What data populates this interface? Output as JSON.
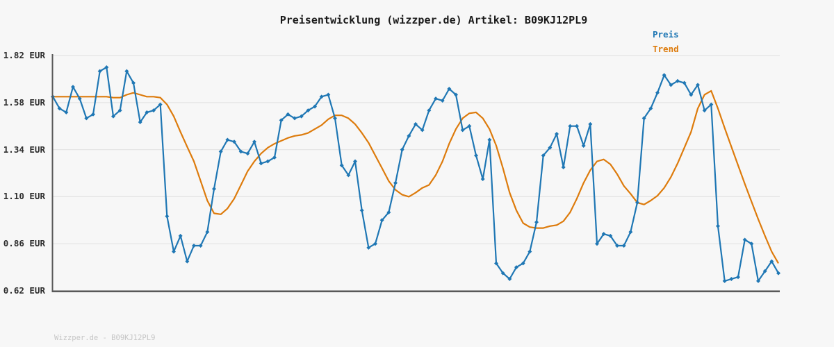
{
  "title": "Preisentwicklung (wizzper.de) Artikel: B09KJ12PL9",
  "legend": {
    "items": [
      {
        "label": "Preis",
        "color": "#1f77b4"
      },
      {
        "label": "Trend",
        "color": "#dd7b0c"
      }
    ]
  },
  "footer": {
    "watermark": "Wizzper.de - B09KJ12PL9"
  },
  "chart_data": {
    "type": "line",
    "title": "Preisentwicklung (wizzper.de) Artikel: B09KJ12PL9",
    "xlabel": "",
    "ylabel": "EUR",
    "ylim": [
      0.62,
      1.82
    ],
    "ytick_labels": [
      "1.82 EUR",
      "1.58 EUR",
      "1.34 EUR",
      "1.10 EUR",
      "0.86 EUR",
      "0.62 EUR"
    ],
    "ytick_values": [
      1.82,
      1.58,
      1.34,
      1.1,
      0.86,
      0.62
    ],
    "grid": "horizontal",
    "legend_position": "top-right",
    "series": [
      {
        "name": "Preis",
        "color": "#1f77b4",
        "marker": "diamond",
        "values": [
          1.61,
          1.55,
          1.53,
          1.66,
          1.6,
          1.5,
          1.52,
          1.74,
          1.76,
          1.51,
          1.54,
          1.74,
          1.68,
          1.48,
          1.53,
          1.54,
          1.57,
          1.0,
          0.82,
          0.9,
          0.77,
          0.85,
          0.85,
          0.92,
          1.14,
          1.33,
          1.39,
          1.38,
          1.33,
          1.32,
          1.38,
          1.27,
          1.28,
          1.3,
          1.49,
          1.52,
          1.5,
          1.51,
          1.54,
          1.56,
          1.61,
          1.62,
          1.5,
          1.26,
          1.21,
          1.28,
          1.03,
          0.84,
          0.86,
          0.98,
          1.02,
          1.17,
          1.34,
          1.41,
          1.47,
          1.44,
          1.54,
          1.6,
          1.59,
          1.65,
          1.62,
          1.44,
          1.46,
          1.31,
          1.19,
          1.39,
          0.76,
          0.71,
          0.68,
          0.74,
          0.76,
          0.82,
          0.97,
          1.31,
          1.35,
          1.42,
          1.25,
          1.46,
          1.46,
          1.36,
          1.47,
          0.86,
          0.91,
          0.9,
          0.85,
          0.85,
          0.92,
          1.07,
          1.5,
          1.55,
          1.63,
          1.72,
          1.67,
          1.69,
          1.68,
          1.62,
          1.67,
          1.54,
          1.57,
          0.95,
          0.67,
          0.68,
          0.69,
          0.88,
          0.86,
          0.67,
          0.72,
          0.77,
          0.71
        ]
      },
      {
        "name": "Trend",
        "color": "#dd7b0c",
        "marker": "none",
        "values": [
          1.61,
          1.61,
          1.61,
          1.61,
          1.61,
          1.61,
          1.61,
          1.61,
          1.61,
          1.605,
          1.605,
          1.62,
          1.63,
          1.62,
          1.61,
          1.61,
          1.605,
          1.57,
          1.51,
          1.43,
          1.355,
          1.28,
          1.18,
          1.08,
          1.015,
          1.01,
          1.04,
          1.09,
          1.16,
          1.23,
          1.28,
          1.32,
          1.35,
          1.37,
          1.385,
          1.4,
          1.41,
          1.415,
          1.425,
          1.445,
          1.465,
          1.495,
          1.515,
          1.515,
          1.5,
          1.47,
          1.425,
          1.375,
          1.31,
          1.245,
          1.18,
          1.135,
          1.11,
          1.1,
          1.12,
          1.145,
          1.16,
          1.21,
          1.28,
          1.37,
          1.445,
          1.5,
          1.525,
          1.53,
          1.5,
          1.445,
          1.36,
          1.245,
          1.12,
          1.03,
          0.965,
          0.945,
          0.94,
          0.94,
          0.95,
          0.955,
          0.975,
          1.02,
          1.09,
          1.17,
          1.235,
          1.28,
          1.29,
          1.265,
          1.215,
          1.155,
          1.115,
          1.07,
          1.06,
          1.08,
          1.105,
          1.145,
          1.2,
          1.27,
          1.35,
          1.43,
          1.55,
          1.62,
          1.64,
          1.55,
          1.45,
          1.355,
          1.26,
          1.165,
          1.075,
          0.985,
          0.9,
          0.82,
          0.76
        ]
      }
    ]
  }
}
